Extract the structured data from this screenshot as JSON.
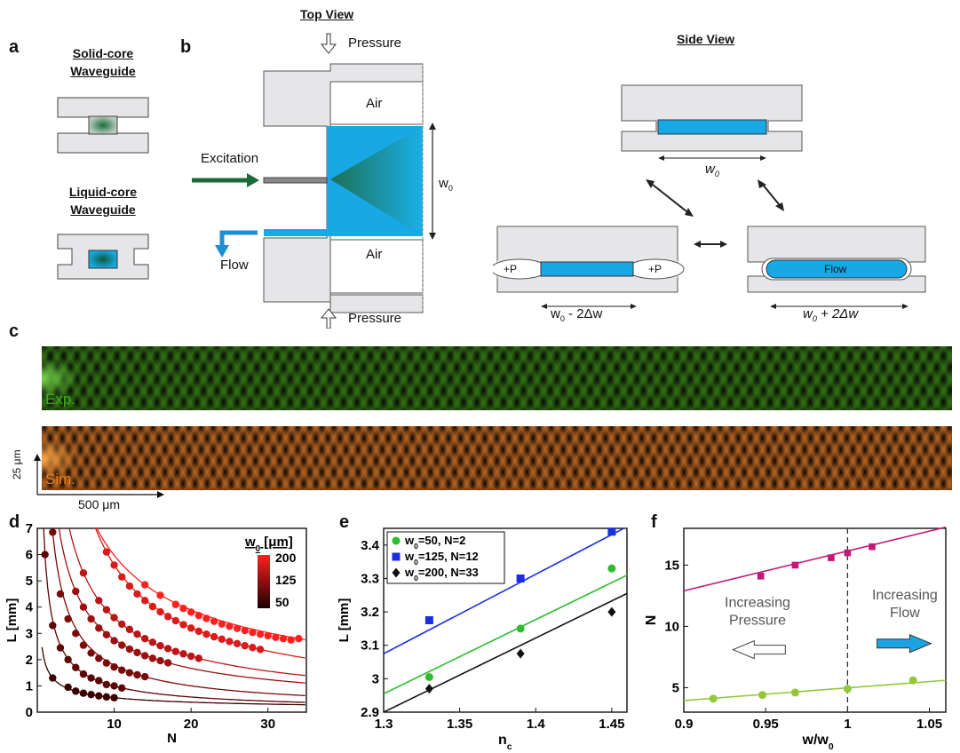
{
  "panels": {
    "a": "a",
    "b": "b",
    "c": "c",
    "d": "d",
    "e": "e",
    "f": "f"
  },
  "panel_a": {
    "solid_core": "Solid-core\nWaveguide",
    "liquid_core": "Liquid-core\nWaveguide"
  },
  "panel_b": {
    "top_view": "Top View",
    "side_view": "Side View",
    "pressure_top": "Pressure",
    "pressure_bottom": "Pressure",
    "air_top": "Air",
    "air_bottom": "Air",
    "excitation": "Excitation",
    "flow": "Flow",
    "w0": "w",
    "w0_sub": "0",
    "side_w0": "w",
    "side_w0_sub": "0",
    "left_width": "w",
    "left_width_sub": "0",
    "left_width_rest": " - 2Δw",
    "right_width": "w",
    "right_width_sub": "0",
    "right_width_rest": " + 2Δw",
    "plus_p_left": "+P",
    "plus_p_right": "+P",
    "flow_label": "Flow"
  },
  "panel_c": {
    "exp": "Exp.",
    "sim": "Sim.",
    "scale_v": "25 μm",
    "scale_h": "500 μm"
  },
  "chart_data": [
    {
      "type": "scatter",
      "panel": "d",
      "xlabel": "N",
      "ylabel": "L [mm]",
      "xlim": [
        0,
        35
      ],
      "ylim": [
        0,
        7
      ],
      "xticks": [
        10,
        20,
        30
      ],
      "yticks": [
        0,
        1,
        2,
        3,
        4,
        5,
        6,
        7
      ],
      "colorbar": {
        "title": "w",
        "title_sub": "0",
        "title_rest": " [μm]",
        "ticks": [
          200,
          125,
          50
        ]
      },
      "series": [
        {
          "w0": 50,
          "color": "#3a0000",
          "x": [
            2,
            4,
            5,
            6,
            7,
            8,
            9,
            10
          ],
          "y": [
            1.3,
            0.95,
            0.8,
            0.72,
            0.67,
            0.62,
            0.58,
            0.55
          ]
        },
        {
          "w0": 75,
          "color": "#5c0505",
          "x": [
            1,
            2,
            3,
            4,
            5,
            6,
            7,
            8,
            9,
            10,
            11
          ],
          "y": [
            6.0,
            3.3,
            2.45,
            2.0,
            1.7,
            1.45,
            1.3,
            1.2,
            1.05,
            1.0,
            0.92
          ]
        },
        {
          "w0": 100,
          "color": "#7a0a0a",
          "x": [
            2,
            3,
            4,
            5,
            6,
            7,
            8,
            9,
            10,
            11,
            12,
            13,
            14
          ],
          "y": [
            6.85,
            4.5,
            3.55,
            3.0,
            2.55,
            2.25,
            2.05,
            1.87,
            1.72,
            1.6,
            1.5,
            1.42,
            1.35
          ]
        },
        {
          "w0": 125,
          "color": "#9b1010",
          "x": [
            5,
            6,
            7,
            8,
            9,
            10,
            11,
            12,
            13,
            14,
            15,
            16,
            17
          ],
          "y": [
            4.6,
            4.0,
            3.55,
            3.2,
            2.95,
            2.72,
            2.55,
            2.4,
            2.27,
            2.15,
            2.05,
            1.96,
            1.88
          ]
        },
        {
          "w0": 150,
          "color": "#bb1515",
          "x": [
            6,
            8,
            9,
            10,
            11,
            12,
            13,
            14,
            15,
            16,
            17,
            18,
            19,
            20,
            21
          ],
          "y": [
            5.3,
            4.25,
            3.9,
            3.6,
            3.35,
            3.15,
            2.97,
            2.8,
            2.66,
            2.53,
            2.42,
            2.31,
            2.22,
            2.13,
            2.05
          ]
        },
        {
          "w0": 175,
          "color": "#dd1a1a",
          "x": [
            9,
            10,
            11,
            12,
            13,
            14,
            15,
            16,
            17,
            18,
            19,
            20,
            21,
            22,
            23,
            24,
            25,
            26,
            27,
            28,
            29
          ],
          "y": [
            6.1,
            5.6,
            5.15,
            4.8,
            4.5,
            4.25,
            4.02,
            3.82,
            3.64,
            3.48,
            3.33,
            3.2,
            3.08,
            2.97,
            2.87,
            2.78,
            2.69,
            2.61,
            2.53,
            2.46,
            2.39
          ]
        },
        {
          "w0": 200,
          "color": "#ff2020",
          "x": [
            14,
            16,
            18,
            19,
            20,
            21,
            22,
            23,
            24,
            25,
            26,
            27,
            28,
            29,
            30,
            31,
            32,
            33,
            34
          ],
          "y": [
            4.85,
            4.45,
            4.1,
            3.95,
            3.81,
            3.68,
            3.57,
            3.46,
            3.36,
            3.27,
            3.19,
            3.11,
            3.04,
            2.97,
            2.91,
            2.85,
            2.8,
            2.75,
            2.8
          ]
        }
      ]
    },
    {
      "type": "scatter",
      "panel": "e",
      "xlabel": "n",
      "xlabel_sub": "c",
      "ylabel": "L [mm]",
      "xlim": [
        1.3,
        1.46
      ],
      "ylim": [
        2.9,
        3.45
      ],
      "xticks": [
        1.3,
        1.35,
        1.4,
        1.45
      ],
      "xticklabels": [
        "1.3",
        "1.35",
        "1.4",
        "1.45"
      ],
      "yticks": [
        2.9,
        3,
        3.1,
        3.2,
        3.3,
        3.4
      ],
      "yticklabels": [
        "2.9",
        "3",
        "3.1",
        "3.2",
        "3.3",
        "3.4"
      ],
      "series": [
        {
          "name": "w",
          "name_sub": "0",
          "name_rest": "=50, N=2",
          "color": "#2ebd2e",
          "marker": "circle",
          "x": [
            1.33,
            1.39,
            1.45
          ],
          "y": [
            3.005,
            3.15,
            3.33
          ],
          "fit": [
            [
              1.3,
              2.955
            ],
            [
              1.46,
              3.31
            ]
          ]
        },
        {
          "name": "w",
          "name_sub": "0",
          "name_rest": "=125, N=12",
          "color": "#1a2ee0",
          "marker": "square",
          "x": [
            1.33,
            1.39,
            1.45
          ],
          "y": [
            3.175,
            3.3,
            3.44
          ],
          "fit": [
            [
              1.3,
              3.075
            ],
            [
              1.46,
              3.455
            ]
          ]
        },
        {
          "name": "w",
          "name_sub": "0",
          "name_rest": "=200, N=33",
          "color": "#111111",
          "marker": "diamond",
          "x": [
            1.33,
            1.39,
            1.45
          ],
          "y": [
            2.97,
            3.075,
            3.2
          ],
          "fit": [
            [
              1.3,
              2.9
            ],
            [
              1.46,
              3.255
            ]
          ]
        }
      ]
    },
    {
      "type": "scatter",
      "panel": "f",
      "xlabel": "w/w",
      "xlabel_sub": "0",
      "ylabel": "N",
      "xlim": [
        0.9,
        1.06
      ],
      "ylim": [
        3,
        18
      ],
      "xticks": [
        0.9,
        0.95,
        1,
        1.05
      ],
      "xticklabels": [
        "0.9",
        "0.95",
        "1",
        "1.05"
      ],
      "yticks": [
        5,
        10,
        15
      ],
      "yticklabels": [
        "5",
        "10",
        "15"
      ],
      "annotations": {
        "pressure": "Increasing\nPressure",
        "flow": "Increasing\nFlow"
      },
      "series": [
        {
          "color": "#c2187a",
          "marker": "square",
          "x": [
            0.947,
            0.968,
            0.99,
            1.0,
            1.015
          ],
          "y": [
            14.1,
            15.0,
            15.6,
            16.0,
            16.5
          ],
          "fit": [
            [
              0.9,
              12.9
            ],
            [
              1.06,
              18.1
            ]
          ]
        },
        {
          "color": "#93c83a",
          "marker": "circle",
          "x": [
            0.918,
            0.948,
            0.968,
            1.0,
            1.04
          ],
          "y": [
            4.1,
            4.4,
            4.6,
            4.9,
            5.6
          ],
          "fit": [
            [
              0.9,
              3.95
            ],
            [
              1.06,
              5.6
            ]
          ]
        }
      ]
    }
  ]
}
